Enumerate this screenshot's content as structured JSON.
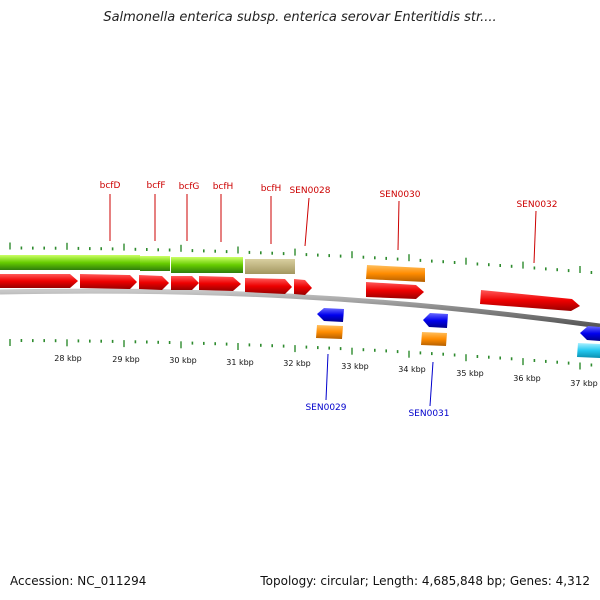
{
  "title": "Salmonella enterica subsp. enterica serovar Enteritidis str....",
  "footer": {
    "accession": "Accession: NC_011294",
    "summary": "Topology: circular; Length: 4,685,848 bp; Genes: 4,312"
  },
  "colors": {
    "forward_label": "#cc0000",
    "reverse_label": "#0000cc",
    "tick": "#2e8b2e",
    "backbone": "#808080"
  },
  "tick_labels": [
    "28 kbp",
    "29 kbp",
    "30 kbp",
    "31 kbp",
    "32 kbp",
    "33 kbp",
    "34 kbp",
    "35 kbp",
    "36 kbp",
    "37 kbp"
  ],
  "top_labels": [
    "bcfD",
    "bcfF",
    "bcfG",
    "bcfH",
    "bcfH",
    "SEN0028",
    "SEN0030",
    "SEN0032"
  ],
  "bottom_labels": [
    "SEN0029",
    "SEN0031"
  ]
}
